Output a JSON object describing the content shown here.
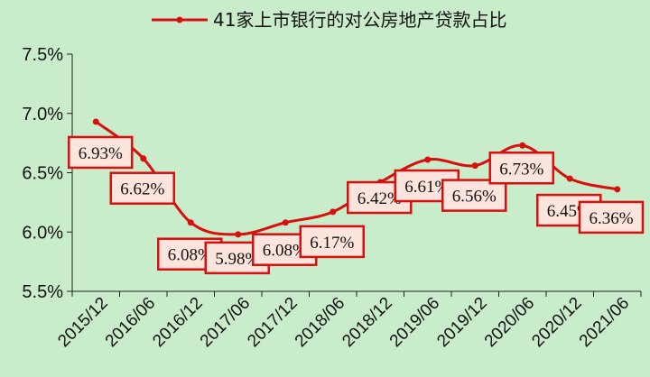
{
  "legend": {
    "label": "41家上市银行的对公房地产贷款占比"
  },
  "colors": {
    "line": "#d80f0f",
    "label_fill": "#fde4dc",
    "label_border": "#d80f0f",
    "background": "#c9eccb"
  },
  "chart_data": {
    "type": "line",
    "title": "",
    "xlabel": "",
    "ylabel": "",
    "categories": [
      "2015/12",
      "2016/06",
      "2016/12",
      "2017/06",
      "2017/12",
      "2018/06",
      "2018/12",
      "2019/06",
      "2019/12",
      "2020/06",
      "2020/12",
      "2021/06"
    ],
    "series": [
      {
        "name": "41家上市银行的对公房地产贷款占比",
        "values": [
          6.93,
          6.62,
          6.08,
          5.98,
          6.08,
          6.17,
          6.42,
          6.61,
          6.56,
          6.73,
          6.45,
          6.36
        ],
        "labels": [
          "6.93%",
          "6.62%",
          "6.08%",
          "5.98%",
          "6.08%",
          "6.17%",
          "6.42%",
          "6.61%",
          "6.56%",
          "6.73%",
          "6.45%",
          "6.36%"
        ]
      }
    ],
    "y_ticks": [
      5.5,
      6.0,
      6.5,
      7.0,
      7.5
    ],
    "y_tick_labels": [
      "5.5%",
      "6.0%",
      "6.5%",
      "7.0%",
      "7.5%"
    ],
    "ylim": [
      5.5,
      7.5
    ],
    "grid": false,
    "legend_position": "top-center",
    "smooth": true
  }
}
